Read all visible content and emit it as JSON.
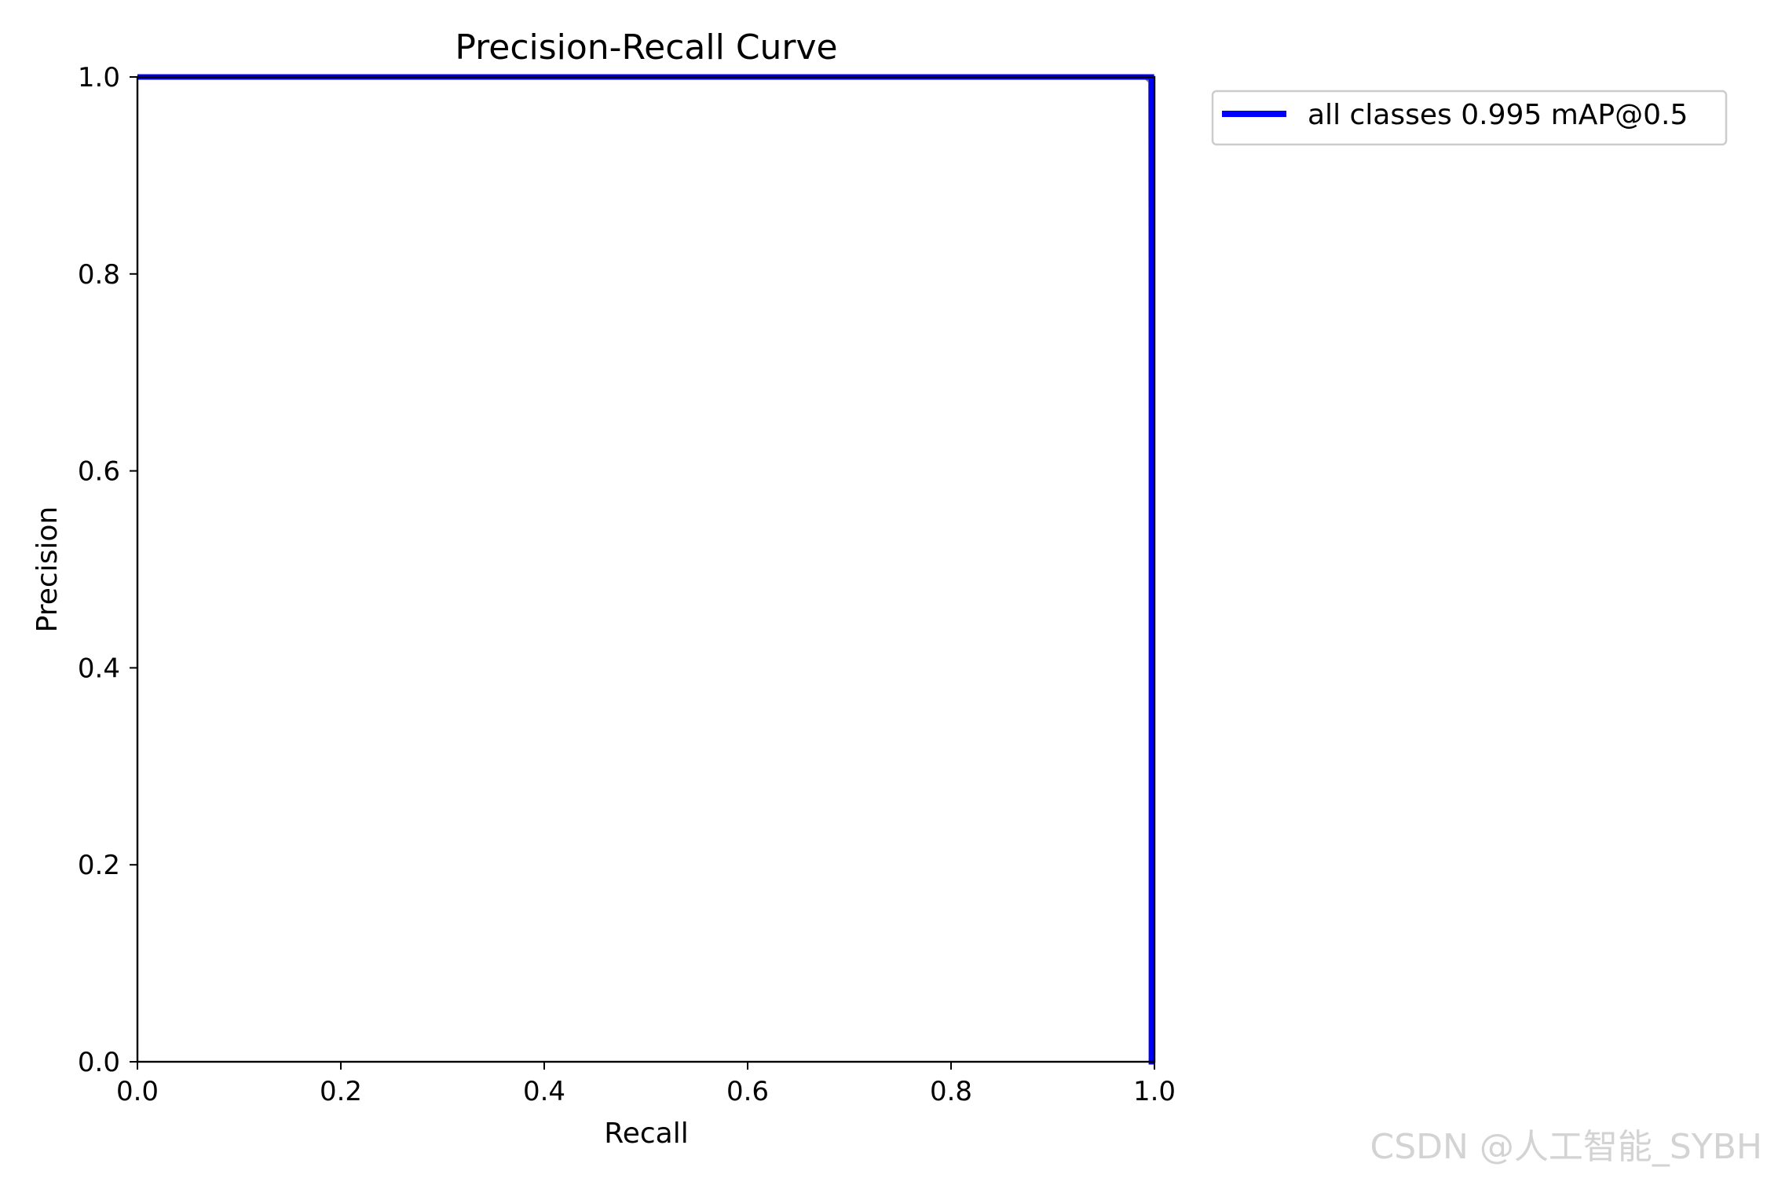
{
  "chart_data": {
    "type": "line",
    "title": "Precision-Recall Curve",
    "xlabel": "Recall",
    "ylabel": "Precision",
    "xlim": [
      0,
      1
    ],
    "ylim": [
      0,
      1
    ],
    "xticks": [
      "0.0",
      "0.2",
      "0.4",
      "0.6",
      "0.8",
      "1.0"
    ],
    "yticks": [
      "0.0",
      "0.2",
      "0.4",
      "0.6",
      "0.8",
      "1.0"
    ],
    "grid": false,
    "legend_position": "outside-top-right",
    "series": [
      {
        "name": "all classes 0.995 mAP@0.5",
        "color": "#0000ff",
        "x": [
          0.0,
          0.995,
          0.997,
          0.997,
          1.0,
          1.0
        ],
        "y": [
          1.0,
          1.0,
          1.0,
          0.0,
          0.0,
          0.0
        ]
      }
    ],
    "per_class_curve": {
      "color": "#808080",
      "x": [
        0.0,
        0.99,
        0.995,
        0.997
      ],
      "y": [
        1.0,
        1.0,
        0.995,
        0.0
      ]
    }
  },
  "watermark": "CSDN @人工智能_SYBH"
}
